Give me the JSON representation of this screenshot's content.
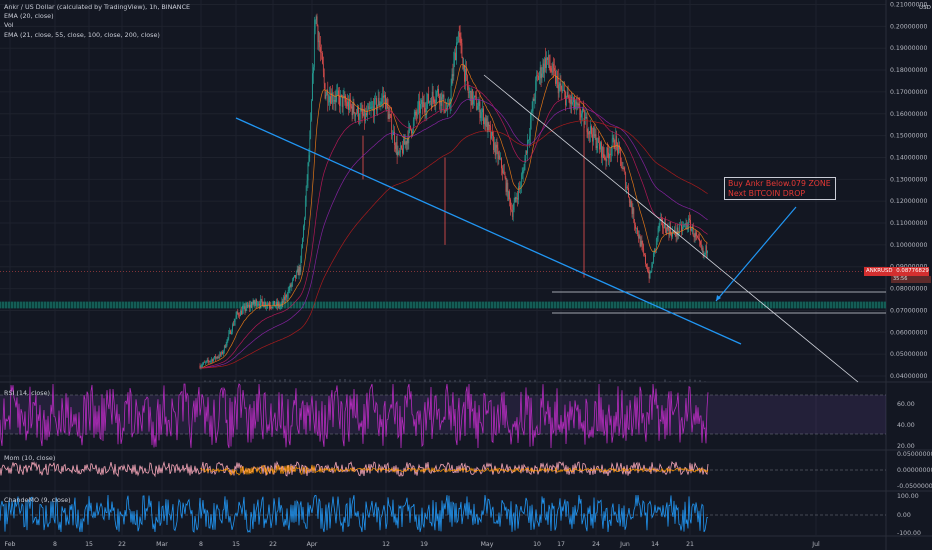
{
  "chart_data": {
    "type": "candlestick",
    "legend": [
      "Ankr / US Dollar (calculated by TradingView), 1h, BINANCE",
      "EMA (20, close)",
      "Vol",
      "EMA (21, close, 55, close, 100, close, 200, close)"
    ],
    "price_axis": {
      "currency": "USD",
      "ticks": [
        "0.21000000",
        "0.20000000",
        "0.19000000",
        "0.18000000",
        "0.17000000",
        "0.16000000",
        "0.15000000",
        "0.14000000",
        "0.13000000",
        "0.12000000",
        "0.11000000",
        "0.10000000",
        "0.09000000",
        "0.08000000",
        "0.07000000",
        "0.06000000",
        "0.05000000",
        "0.04000000"
      ],
      "ylim": [
        0.035,
        0.2105
      ],
      "last_price": "0.08776829",
      "last_price_label": "ANKRUSD",
      "countdown": "35:56"
    },
    "time_axis": {
      "ticks": [
        "Feb",
        "8",
        "15",
        "22",
        "Mar",
        "8",
        "15",
        "22",
        "Apr",
        "12",
        "19",
        "May",
        "10",
        "17",
        "24",
        "Jun",
        "14",
        "21",
        "Jul"
      ]
    },
    "price_path": [
      [
        "2021-02-23",
        0.038
      ],
      [
        "2021-03-05",
        0.05
      ],
      [
        "2021-03-08",
        0.068
      ],
      [
        "2021-03-12",
        0.074
      ],
      [
        "2021-03-17",
        0.072
      ],
      [
        "2021-03-21",
        0.09
      ],
      [
        "2021-03-23",
        0.15
      ],
      [
        "2021-03-24",
        0.207
      ],
      [
        "2021-03-26",
        0.17
      ],
      [
        "2021-03-30",
        0.165
      ],
      [
        "2021-04-03",
        0.158
      ],
      [
        "2021-04-07",
        0.168
      ],
      [
        "2021-04-10",
        0.14
      ],
      [
        "2021-04-14",
        0.162
      ],
      [
        "2021-04-18",
        0.17
      ],
      [
        "2021-04-20",
        0.16
      ],
      [
        "2021-04-22",
        0.198
      ],
      [
        "2021-04-24",
        0.17
      ],
      [
        "2021-04-27",
        0.16
      ],
      [
        "2021-05-01",
        0.135
      ],
      [
        "2021-05-03",
        0.115
      ],
      [
        "2021-05-05",
        0.13
      ],
      [
        "2021-05-08",
        0.175
      ],
      [
        "2021-05-10",
        0.185
      ],
      [
        "2021-05-13",
        0.17
      ],
      [
        "2021-05-17",
        0.16
      ],
      [
        "2021-05-22",
        0.14
      ],
      [
        "2021-05-24",
        0.148
      ],
      [
        "2021-05-26",
        0.13
      ],
      [
        "2021-05-28",
        0.11
      ],
      [
        "2021-05-31",
        0.085
      ],
      [
        "2021-06-02",
        0.11
      ],
      [
        "2021-06-05",
        0.105
      ],
      [
        "2021-06-08",
        0.11
      ],
      [
        "2021-06-11",
        0.095
      ],
      [
        "2021-06-14",
        0.112
      ],
      [
        "2021-06-18",
        0.11
      ],
      [
        "2021-06-21",
        0.1
      ],
      [
        "2021-06-26",
        0.108
      ],
      [
        "2021-06-30",
        0.095
      ],
      [
        "2021-07-02",
        0.088
      ]
    ],
    "zones": [
      {
        "kind": "support_band",
        "from": 0.0705,
        "to": 0.0745,
        "color": "#26a69a"
      },
      {
        "kind": "rect",
        "from": 0.069,
        "to": 0.0785,
        "color": "#ffffff"
      }
    ],
    "annotation": [
      "Buy Ankr Below.079 ZONE",
      "Next BITCOIN DROP"
    ],
    "rsi": {
      "label": "RSI (14, close)",
      "ticks": [
        "60.00",
        "40.00",
        "20.00"
      ]
    },
    "momentum": {
      "label": "Mom (10, close)",
      "ticks": [
        "0.05000000",
        "0.00000000",
        "-0.05000000"
      ]
    },
    "chande": {
      "label": "ChandeMO (9, close)",
      "ticks": [
        "100.00",
        "0.00",
        "-100.00"
      ]
    },
    "colors": {
      "background": "#131722",
      "bull": "#26a69a",
      "bear": "#ef5350",
      "trendline": "#2196f3",
      "rsi": "#b62cbf",
      "momentum": "#ff9800",
      "chande": "#2196f3"
    }
  }
}
